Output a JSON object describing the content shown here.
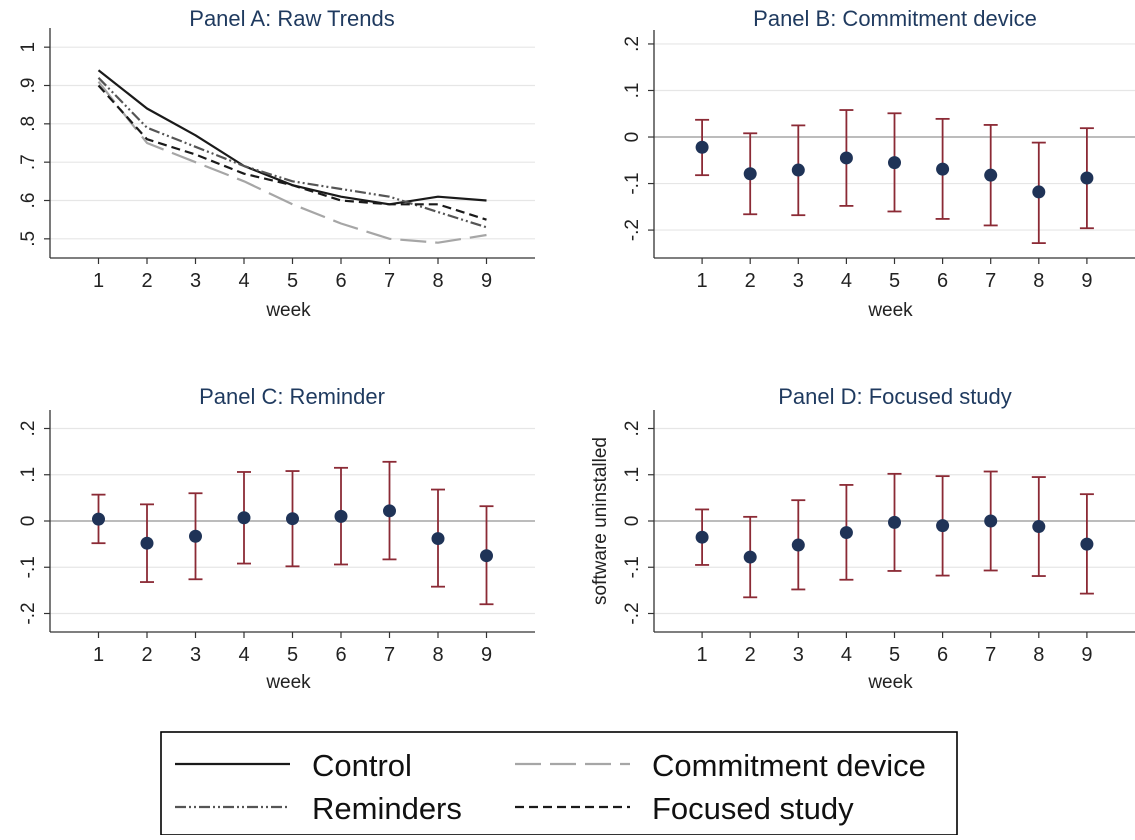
{
  "chart_data": [
    {
      "panel_id": "A",
      "type": "line",
      "title": "Panel A: Raw Trends",
      "xlabel": "week",
      "ylabel": "",
      "x": [
        1,
        2,
        3,
        4,
        5,
        6,
        7,
        8,
        9
      ],
      "x_ticks": [
        "1",
        "2",
        "3",
        "4",
        "5",
        "6",
        "7",
        "8",
        "9"
      ],
      "xlim": [
        0,
        10
      ],
      "y_ticks": [
        {
          "value": 0.5,
          "label": ".5"
        },
        {
          "value": 0.6,
          "label": ".6"
        },
        {
          "value": 0.7,
          "label": ".7"
        },
        {
          "value": 0.8,
          "label": ".8"
        },
        {
          "value": 0.9,
          "label": ".9"
        },
        {
          "value": 1.0,
          "label": "1"
        }
      ],
      "ylim": [
        0.45,
        1.05
      ],
      "grid": true,
      "series": [
        {
          "name": "Control",
          "style": "solid",
          "color": "#1a1a1a",
          "values": [
            0.94,
            0.84,
            0.77,
            0.69,
            0.64,
            0.61,
            0.59,
            0.61,
            0.6
          ]
        },
        {
          "name": "Commitment device",
          "style": "longdash",
          "color": "#a6a6a6",
          "values": [
            0.91,
            0.75,
            0.7,
            0.65,
            0.59,
            0.54,
            0.5,
            0.49,
            0.51
          ]
        },
        {
          "name": "Reminders",
          "style": "dashdotdot",
          "color": "#555555",
          "values": [
            0.92,
            0.79,
            0.74,
            0.69,
            0.65,
            0.63,
            0.61,
            0.57,
            0.53
          ]
        },
        {
          "name": "Focused study",
          "style": "shortdash",
          "color": "#1a1a1a",
          "values": [
            0.9,
            0.76,
            0.72,
            0.67,
            0.64,
            0.6,
            0.59,
            0.59,
            0.55
          ]
        }
      ]
    },
    {
      "panel_id": "B",
      "type": "scatter",
      "title": "Panel B: Commitment device",
      "xlabel": "week",
      "ylabel": "",
      "x": [
        1,
        2,
        3,
        4,
        5,
        6,
        7,
        8,
        9
      ],
      "x_ticks": [
        "1",
        "2",
        "3",
        "4",
        "5",
        "6",
        "7",
        "8",
        "9"
      ],
      "xlim": [
        0,
        10
      ],
      "y_ticks": [
        {
          "value": -0.2,
          "label": "-.2"
        },
        {
          "value": -0.1,
          "label": "-.1"
        },
        {
          "value": 0.0,
          "label": "0"
        },
        {
          "value": 0.1,
          "label": ".1"
        },
        {
          "value": 0.2,
          "label": ".2"
        }
      ],
      "ylim": [
        -0.26,
        0.23
      ],
      "grid": true,
      "reference_line": 0,
      "estimates": [
        -0.022,
        -0.079,
        -0.071,
        -0.045,
        -0.055,
        -0.069,
        -0.082,
        -0.118,
        -0.088
      ],
      "ci_low": [
        -0.082,
        -0.166,
        -0.168,
        -0.148,
        -0.16,
        -0.176,
        -0.19,
        -0.228,
        -0.196
      ],
      "ci_high": [
        0.037,
        0.008,
        0.025,
        0.058,
        0.051,
        0.039,
        0.026,
        -0.012,
        0.019
      ]
    },
    {
      "panel_id": "C",
      "type": "scatter",
      "title": "Panel C: Reminder",
      "xlabel": "week",
      "ylabel": "",
      "x": [
        1,
        2,
        3,
        4,
        5,
        6,
        7,
        8,
        9
      ],
      "x_ticks": [
        "1",
        "2",
        "3",
        "4",
        "5",
        "6",
        "7",
        "8",
        "9"
      ],
      "xlim": [
        0,
        10
      ],
      "y_ticks": [
        {
          "value": -0.2,
          "label": "-.2"
        },
        {
          "value": -0.1,
          "label": "-.1"
        },
        {
          "value": 0.0,
          "label": "0"
        },
        {
          "value": 0.1,
          "label": ".1"
        },
        {
          "value": 0.2,
          "label": ".2"
        }
      ],
      "ylim": [
        -0.24,
        0.24
      ],
      "grid": true,
      "reference_line": 0,
      "estimates": [
        0.004,
        -0.048,
        -0.033,
        0.007,
        0.005,
        0.01,
        0.022,
        -0.038,
        -0.075
      ],
      "ci_low": [
        -0.048,
        -0.132,
        -0.126,
        -0.092,
        -0.098,
        -0.094,
        -0.083,
        -0.142,
        -0.18
      ],
      "ci_high": [
        0.057,
        0.036,
        0.06,
        0.106,
        0.108,
        0.115,
        0.128,
        0.068,
        0.032
      ]
    },
    {
      "panel_id": "D",
      "type": "scatter",
      "title": "Panel D: Focused study",
      "xlabel": "week",
      "ylabel": "software uninstalled",
      "x": [
        1,
        2,
        3,
        4,
        5,
        6,
        7,
        8,
        9
      ],
      "x_ticks": [
        "1",
        "2",
        "3",
        "4",
        "5",
        "6",
        "7",
        "8",
        "9"
      ],
      "xlim": [
        0,
        10
      ],
      "y_ticks": [
        {
          "value": -0.2,
          "label": "-.2"
        },
        {
          "value": -0.1,
          "label": "-.1"
        },
        {
          "value": 0.0,
          "label": "0"
        },
        {
          "value": 0.1,
          "label": ".1"
        },
        {
          "value": 0.2,
          "label": ".2"
        }
      ],
      "ylim": [
        -0.24,
        0.24
      ],
      "grid": true,
      "reference_line": 0,
      "estimates": [
        -0.035,
        -0.078,
        -0.052,
        -0.025,
        -0.003,
        -0.01,
        0.0,
        -0.012,
        -0.05
      ],
      "ci_low": [
        -0.095,
        -0.165,
        -0.148,
        -0.127,
        -0.108,
        -0.118,
        -0.107,
        -0.119,
        -0.157
      ],
      "ci_high": [
        0.025,
        0.009,
        0.045,
        0.078,
        0.102,
        0.097,
        0.107,
        0.095,
        0.058
      ]
    }
  ],
  "legend": {
    "placement": "bottom-center",
    "entries": [
      {
        "label": "Control",
        "style": "solid",
        "color": "#1a1a1a"
      },
      {
        "label": "Commitment device",
        "style": "longdash",
        "color": "#a6a6a6"
      },
      {
        "label": "Reminders",
        "style": "dashdotdot",
        "color": "#555555"
      },
      {
        "label": "Focused study",
        "style": "shortdash",
        "color": "#1a1a1a"
      }
    ]
  },
  "colors": {
    "title_text": "#1f3a5f",
    "axis": "#333333",
    "grid": "#e6e6e6",
    "reference_line": "#999999",
    "marker": "#1f3357",
    "error_bar": "#8b2a35"
  }
}
